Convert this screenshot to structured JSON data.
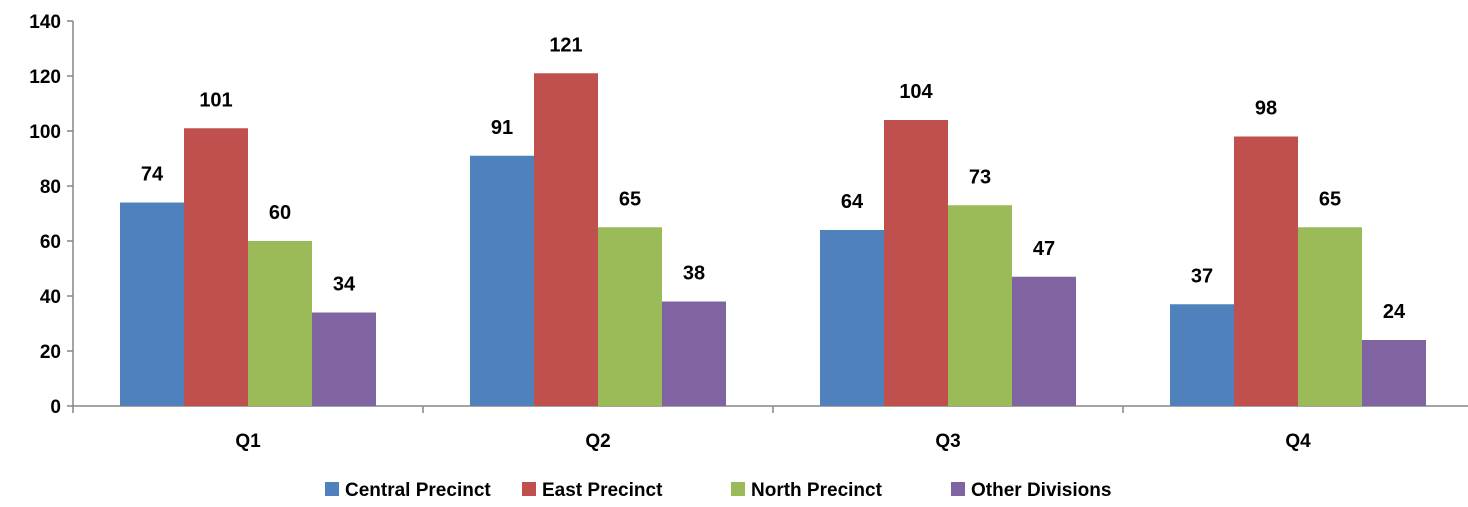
{
  "chart_data": {
    "type": "bar",
    "title": "",
    "xlabel": "",
    "ylabel": "",
    "categories": [
      "Q1",
      "Q2",
      "Q3",
      "Q4"
    ],
    "series": [
      {
        "name": "Central Precinct",
        "color": "#4F81BD",
        "values": [
          74,
          91,
          64,
          37
        ]
      },
      {
        "name": "East Precinct",
        "color": "#C0504D",
        "values": [
          101,
          121,
          104,
          98
        ]
      },
      {
        "name": "North Precinct",
        "color": "#9BBB59",
        "values": [
          60,
          65,
          73,
          65
        ]
      },
      {
        "name": "Other Divisions",
        "color": "#8064A2",
        "values": [
          34,
          38,
          47,
          24
        ]
      }
    ],
    "ylim": [
      0,
      140
    ],
    "yticks": [
      0,
      20,
      40,
      60,
      80,
      100,
      120,
      140
    ],
    "grid": false,
    "legend_position": "bottom",
    "data_labels": true
  }
}
